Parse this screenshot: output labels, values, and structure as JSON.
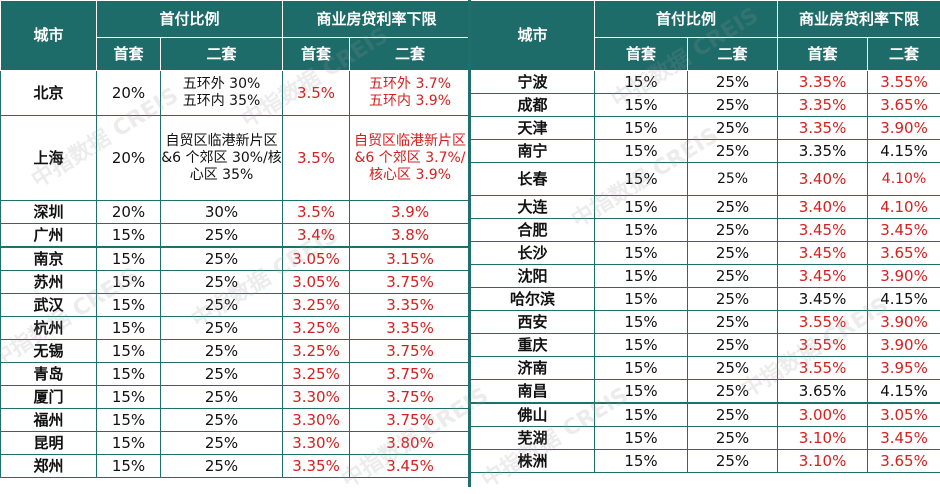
{
  "header": {
    "city": "城市",
    "down_payment": "首付比例",
    "mortgage_floor": "商业房贷利率下限",
    "first": "首套",
    "second": "二套"
  },
  "left_rows": [
    {
      "city": "北京",
      "dp1": "20%",
      "dp2": "五环外  30%\n五环内  35%",
      "r1": "3.5%",
      "r2": "五环外  3.7%\n五环内  3.9%"
    },
    {
      "city": "上海",
      "dp1": "20%",
      "dp2": "自贸区临港新片区&6 个郊区 30%/核心区 35%",
      "r1": "3.5%",
      "r2": "自贸区临港新片区&6 个郊区 3.7%/核心区 3.9%"
    },
    {
      "city": "深圳",
      "dp1": "20%",
      "dp2": "30%",
      "r1": "3.5%",
      "r2": "3.9%"
    },
    {
      "city": "广州",
      "dp1": "15%",
      "dp2": "25%",
      "r1": "3.4%",
      "r2": "3.8%"
    },
    {
      "city": "南京",
      "dp1": "15%",
      "dp2": "25%",
      "r1": "3.05%",
      "r2": "3.15%"
    },
    {
      "city": "苏州",
      "dp1": "15%",
      "dp2": "25%",
      "r1": "3.05%",
      "r2": "3.75%"
    },
    {
      "city": "武汉",
      "dp1": "15%",
      "dp2": "25%",
      "r1": "3.25%",
      "r2": "3.35%"
    },
    {
      "city": "杭州",
      "dp1": "15%",
      "dp2": "25%",
      "r1": "3.25%",
      "r2": "3.35%"
    },
    {
      "city": "无锡",
      "dp1": "15%",
      "dp2": "25%",
      "r1": "3.25%",
      "r2": "3.75%"
    },
    {
      "city": "青岛",
      "dp1": "15%",
      "dp2": "25%",
      "r1": "3.25%",
      "r2": "3.75%"
    },
    {
      "city": "厦门",
      "dp1": "15%",
      "dp2": "25%",
      "r1": "3.30%",
      "r2": "3.75%"
    },
    {
      "city": "福州",
      "dp1": "15%",
      "dp2": "25%",
      "r1": "3.30%",
      "r2": "3.75%"
    },
    {
      "city": "昆明",
      "dp1": "15%",
      "dp2": "25%",
      "r1": "3.30%",
      "r2": "3.80%"
    },
    {
      "city": "郑州",
      "dp1": "15%",
      "dp2": "25%",
      "r1": "3.35%",
      "r2": "3.45%"
    }
  ],
  "right_rows": [
    {
      "city": "宁波",
      "dp1": "15%",
      "dp2": "25%",
      "r1": "3.35%",
      "r2": "3.55%"
    },
    {
      "city": "成都",
      "dp1": "15%",
      "dp2": "25%",
      "r1": "3.35%",
      "r2": "3.65%"
    },
    {
      "city": "天津",
      "dp1": "15%",
      "dp2": "25%",
      "r1": "3.35%",
      "r2": "3.90%"
    },
    {
      "city": "南宁",
      "dp1": "15%",
      "dp2": "25%",
      "r1": "3.35%",
      "r2": "4.15%"
    },
    {
      "city": "长春",
      "dp1": "15%",
      "dp2": "25%",
      "r1": "3.40%",
      "r2": "4.10%"
    },
    {
      "city": "大连",
      "dp1": "15%",
      "dp2": "25%",
      "r1": "3.40%",
      "r2": "4.10%"
    },
    {
      "city": "合肥",
      "dp1": "15%",
      "dp2": "25%",
      "r1": "3.45%",
      "r2": "3.45%"
    },
    {
      "city": "长沙",
      "dp1": "15%",
      "dp2": "25%",
      "r1": "3.45%",
      "r2": "3.65%"
    },
    {
      "city": "沈阳",
      "dp1": "15%",
      "dp2": "25%",
      "r1": "3.45%",
      "r2": "3.90%"
    },
    {
      "city": "哈尔滨",
      "dp1": "15%",
      "dp2": "25%",
      "r1": "3.45%",
      "r2": "4.15%"
    },
    {
      "city": "西安",
      "dp1": "15%",
      "dp2": "25%",
      "r1": "3.55%",
      "r2": "3.90%"
    },
    {
      "city": "重庆",
      "dp1": "15%",
      "dp2": "25%",
      "r1": "3.55%",
      "r2": "3.90%"
    },
    {
      "city": "济南",
      "dp1": "15%",
      "dp2": "25%",
      "r1": "3.55%",
      "r2": "3.95%"
    },
    {
      "city": "南昌",
      "dp1": "15%",
      "dp2": "25%",
      "r1": "3.65%",
      "r2": "4.15%"
    },
    {
      "city": "佛山",
      "dp1": "15%",
      "dp2": "25%",
      "r1": "3.00%",
      "r2": "3.05%"
    },
    {
      "city": "芜湖",
      "dp1": "15%",
      "dp2": "25%",
      "r1": "3.10%",
      "r2": "3.45%"
    },
    {
      "city": "株洲",
      "dp1": "15%",
      "dp2": "25%",
      "r1": "3.10%",
      "r2": "3.65%"
    }
  ],
  "watermark": "中指数据 CREIS"
}
